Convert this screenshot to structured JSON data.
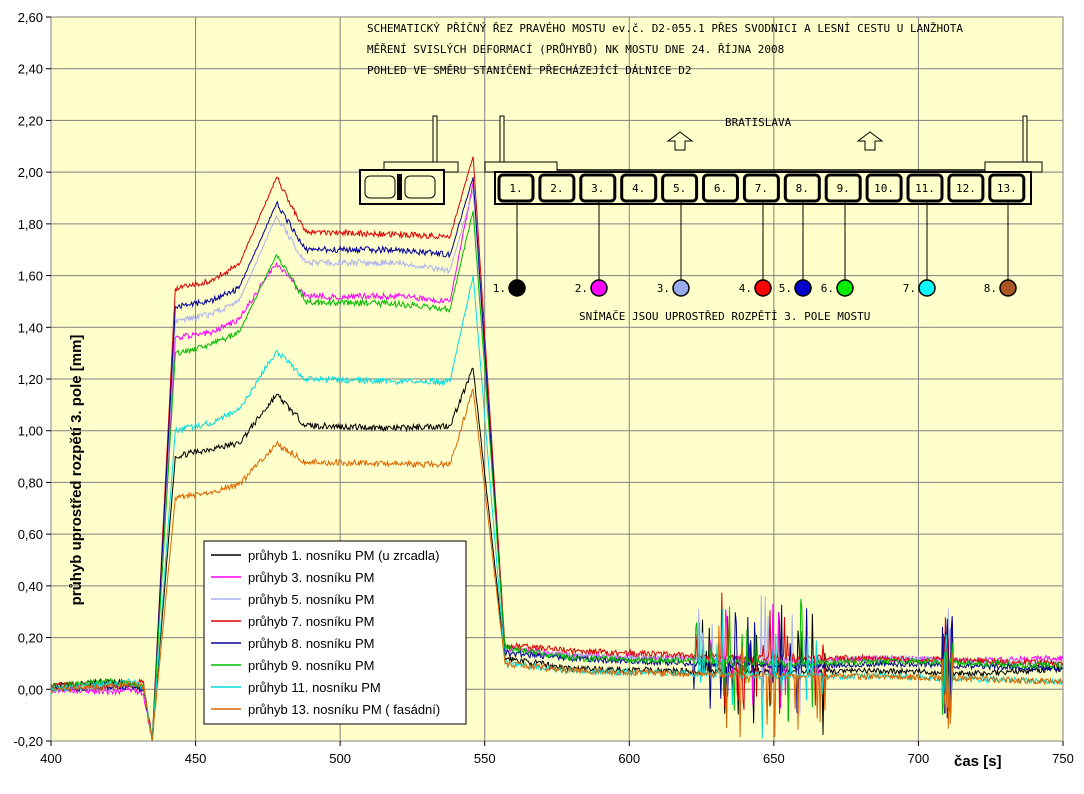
{
  "chart_data": {
    "type": "line",
    "xlabel": "čas [s]",
    "ylabel": "průhyb uprostřed rozpětí 3. pole [mm]",
    "xlim": [
      400,
      750
    ],
    "ylim": [
      -0.2,
      2.6
    ],
    "x_ticks": [
      "400",
      "450",
      "500",
      "550",
      "600",
      "650",
      "700",
      "750"
    ],
    "y_ticks": [
      "-0,20",
      "0,00",
      "0,20",
      "0,40",
      "0,60",
      "0,80",
      "1,00",
      "1,20",
      "1,40",
      "1,60",
      "1,80",
      "2,00",
      "2,20",
      "2,40",
      "2,60"
    ],
    "grid": true,
    "legend_position": "bottom-left",
    "background": "#ffffcc",
    "annotations": {
      "title_lines": [
        "SCHEMATICKÝ PŘÍČNÝ ŘEZ PRAVÉHO MOSTU ev.č. D2-055.1 PŘES SVODNICI A LESNÍ CESTU U LANŽHOTA",
        "MĚŘENÍ SVISLÝCH DEFORMACÍ (PRŮHYBŮ) NK MOSTU DNE 24. ŘÍJNA 2008",
        "POHLED VE SMĚRU STANIČENÍ PŘECHÁZEJÍCÍ DÁLNICE D2"
      ],
      "direction_label": "BRATISLAVA",
      "girder_labels": [
        "1.",
        "2.",
        "3.",
        "4.",
        "5.",
        "6.",
        "7.",
        "8.",
        "9.",
        "10.",
        "11.",
        "12.",
        "13."
      ],
      "sensor_labels": [
        "1.",
        "2.",
        "3.",
        "4.",
        "5.",
        "6.",
        "7.",
        "8."
      ],
      "sensor_colors": [
        "#000000",
        "#ff00ff",
        "#99aaee",
        "#ff0000",
        "#0000cc",
        "#00ee00",
        "#00ffff",
        "#aa5522"
      ],
      "sensor_note": "SNÍMAČE JSOU UPROSTŘED ROZPĚTÍ 3. POLE MOSTU"
    },
    "series": [
      {
        "name": "průhyb 1. nosníku PM (u zrcadla)",
        "color": "#000000",
        "values": [
          0.01,
          0.03,
          0.02,
          0.0,
          -0.2,
          0.9,
          0.93,
          0.95,
          1.14,
          1.02,
          1.01,
          1.02,
          1.24,
          0.12,
          0.08,
          0.07,
          0.07,
          0.07,
          0.06,
          0.08
        ]
      },
      {
        "name": "průhyb 3. nosníku PM",
        "color": "#ff00ff",
        "values": [
          0.0,
          -0.01,
          0.0,
          -0.02,
          -0.2,
          1.36,
          1.38,
          1.43,
          1.65,
          1.52,
          1.52,
          1.5,
          1.96,
          0.16,
          0.13,
          0.12,
          0.11,
          0.12,
          0.11,
          0.12
        ]
      },
      {
        "name": "průhyb 5. nosníku PM",
        "color": "#aab0ee",
        "values": [
          0.01,
          0.0,
          0.02,
          0.01,
          -0.2,
          1.42,
          1.45,
          1.5,
          1.83,
          1.65,
          1.65,
          1.62,
          1.93,
          0.15,
          0.13,
          0.12,
          0.11,
          0.12,
          0.11,
          0.1
        ]
      },
      {
        "name": "průhyb 7. nosníku PM",
        "color": "#dd0000",
        "values": [
          0.02,
          0.01,
          0.02,
          0.03,
          -0.2,
          1.55,
          1.58,
          1.64,
          1.98,
          1.77,
          1.76,
          1.75,
          2.06,
          0.17,
          0.15,
          0.13,
          0.12,
          0.12,
          0.11,
          0.1
        ]
      },
      {
        "name": "průhyb 8. nosníku PM",
        "color": "#000099",
        "values": [
          0.0,
          0.01,
          0.01,
          0.0,
          -0.2,
          1.48,
          1.5,
          1.55,
          1.88,
          1.7,
          1.7,
          1.68,
          1.98,
          0.14,
          0.12,
          0.1,
          0.09,
          0.1,
          0.09,
          0.08
        ]
      },
      {
        "name": "průhyb 9. nosníku PM",
        "color": "#00bb00",
        "values": [
          0.01,
          0.03,
          0.02,
          0.02,
          -0.2,
          1.3,
          1.33,
          1.38,
          1.68,
          1.5,
          1.49,
          1.47,
          1.85,
          0.16,
          0.12,
          0.11,
          0.1,
          0.11,
          0.1,
          0.09
        ]
      },
      {
        "name": "průhyb 11. nosníku PM",
        "color": "#00dddd",
        "values": [
          0.0,
          0.02,
          0.03,
          0.01,
          -0.2,
          1.0,
          1.03,
          1.08,
          1.31,
          1.2,
          1.19,
          1.19,
          1.6,
          0.1,
          0.07,
          0.06,
          0.05,
          0.05,
          0.04,
          0.03
        ]
      },
      {
        "name": "průhyb 13. nosníku PM ( fasádní)",
        "color": "#dd6600",
        "values": [
          0.0,
          0.01,
          0.02,
          0.01,
          -0.2,
          0.74,
          0.76,
          0.79,
          0.95,
          0.88,
          0.87,
          0.87,
          1.16,
          0.1,
          0.07,
          0.06,
          0.05,
          0.05,
          0.04,
          0.03
        ]
      }
    ],
    "x": [
      400,
      420,
      428,
      432,
      435,
      443,
      455,
      465,
      478,
      488,
      520,
      538,
      546,
      557,
      580,
      620,
      660,
      690,
      720,
      750
    ]
  }
}
